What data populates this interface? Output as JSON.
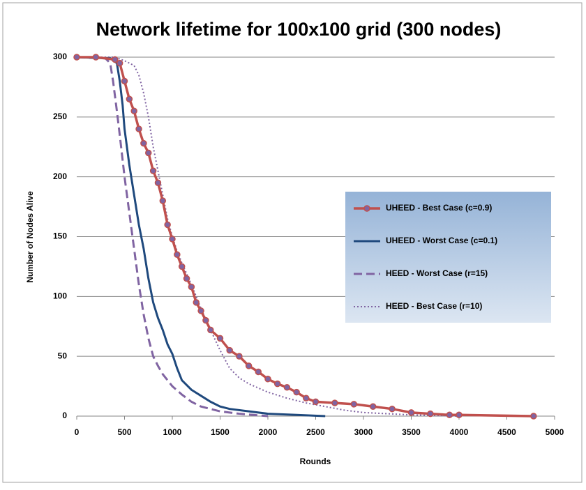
{
  "chart_data": {
    "type": "line",
    "title": "Network lifetime for 100x100 grid (300 nodes)",
    "x_label": "Rounds",
    "y_label": "Number of Nodes Alive",
    "xlim": [
      0,
      5000
    ],
    "xticks": [
      0,
      500,
      1000,
      1500,
      2000,
      2500,
      3000,
      3500,
      4000,
      4500,
      5000
    ],
    "ylim": [
      0,
      300
    ],
    "yticks": [
      0,
      50,
      100,
      150,
      200,
      250,
      300
    ],
    "grid": true,
    "legend": "right",
    "series": [
      {
        "name": "UHEED - Best Case (c=0.9)",
        "color": "#c0504d",
        "style": "solid-markers",
        "x": [
          0,
          200,
          400,
          450,
          500,
          550,
          600,
          650,
          700,
          750,
          800,
          850,
          900,
          950,
          1000,
          1050,
          1100,
          1150,
          1200,
          1250,
          1300,
          1350,
          1400,
          1500,
          1600,
          1700,
          1800,
          1900,
          2000,
          2100,
          2200,
          2300,
          2400,
          2500,
          2700,
          2900,
          3100,
          3300,
          3500,
          3700,
          3900,
          4000,
          4780
        ],
        "values": [
          300,
          300,
          298,
          295,
          280,
          265,
          255,
          240,
          228,
          220,
          205,
          195,
          180,
          160,
          148,
          135,
          125,
          115,
          108,
          95,
          88,
          80,
          72,
          65,
          55,
          50,
          42,
          37,
          31,
          27,
          24,
          20,
          15,
          12,
          11,
          10,
          8,
          6,
          3,
          2,
          1,
          1,
          0
        ]
      },
      {
        "name": "UHEED - Worst Case (c=0.1)",
        "color": "#1f497d",
        "style": "solid",
        "x": [
          0,
          350,
          420,
          450,
          480,
          500,
          550,
          600,
          650,
          700,
          750,
          800,
          850,
          900,
          950,
          1000,
          1050,
          1100,
          1200,
          1300,
          1400,
          1500,
          1600,
          1800,
          2000,
          2300,
          2600
        ],
        "values": [
          300,
          299,
          295,
          280,
          260,
          240,
          210,
          185,
          160,
          140,
          115,
          95,
          82,
          72,
          60,
          52,
          40,
          30,
          22,
          17,
          12,
          8,
          6,
          4,
          2,
          1,
          0
        ]
      },
      {
        "name": "HEED - Worst Case (r=15)",
        "color": "#8064a2",
        "style": "dashed",
        "x": [
          0,
          300,
          350,
          380,
          420,
          450,
          500,
          550,
          600,
          650,
          700,
          750,
          800,
          850,
          900,
          1000,
          1100,
          1200,
          1300,
          1400,
          1500,
          1700,
          2000
        ],
        "values": [
          300,
          299,
          295,
          280,
          255,
          235,
          200,
          170,
          140,
          110,
          85,
          65,
          50,
          42,
          35,
          25,
          18,
          12,
          8,
          6,
          4,
          2,
          0
        ]
      },
      {
        "name": "HEED - Best Case (r=10)",
        "color": "#8064a2",
        "style": "dotted",
        "x": [
          0,
          400,
          500,
          600,
          650,
          700,
          750,
          800,
          850,
          900,
          950,
          1000,
          1050,
          1100,
          1200,
          1300,
          1400,
          1500,
          1600,
          1700,
          1800,
          2000,
          2200,
          2400,
          2600,
          2800,
          3000,
          3500,
          4000
        ],
        "values": [
          300,
          300,
          297,
          293,
          285,
          270,
          250,
          225,
          205,
          185,
          165,
          150,
          138,
          128,
          110,
          90,
          72,
          55,
          40,
          32,
          27,
          20,
          15,
          11,
          8,
          5,
          3,
          1,
          0
        ]
      }
    ]
  }
}
